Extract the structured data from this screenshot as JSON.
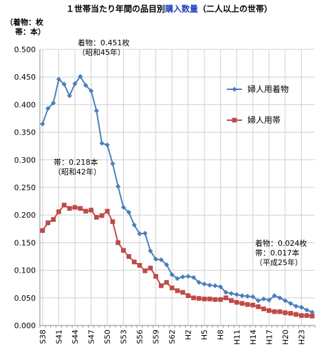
{
  "chart_data": {
    "type": "line",
    "title": {
      "part1": "１世帯当たり年間の品目別",
      "part2": "購入数量",
      "part3": "（二人以上の世帯）"
    },
    "unit_label": [
      "（着物：枚",
      "帯：本）"
    ],
    "ylim": [
      0,
      0.5
    ],
    "yticks": [
      "0.000",
      "0.050",
      "0.100",
      "0.150",
      "0.200",
      "0.250",
      "0.300",
      "0.350",
      "0.400",
      "0.450",
      "0.500"
    ],
    "xtick_labels": [
      "S38",
      "S41",
      "S44",
      "S47",
      "S50",
      "S53",
      "S56",
      "S59",
      "S62",
      "H2",
      "H5",
      "H8",
      "H11",
      "H14",
      "H17",
      "H20",
      "H23"
    ],
    "x": [
      "S38",
      "S39",
      "S40",
      "S41",
      "S42",
      "S43",
      "S44",
      "S45",
      "S46",
      "S47",
      "S48",
      "S49",
      "S50",
      "S51",
      "S52",
      "S53",
      "S54",
      "S55",
      "S56",
      "S57",
      "S58",
      "S59",
      "S60",
      "S61",
      "S62",
      "S63",
      "H1",
      "H2",
      "H3",
      "H4",
      "H5",
      "H6",
      "H7",
      "H8",
      "H9",
      "H10",
      "H11",
      "H12",
      "H13",
      "H14",
      "H15",
      "H16",
      "H17",
      "H18",
      "H19",
      "H20",
      "H21",
      "H22",
      "H23",
      "H24",
      "H25"
    ],
    "grid": true,
    "legend_position": "right",
    "series": [
      {
        "name": "婦人用着物",
        "color": "#4a7ebb",
        "marker": "diamond",
        "values": [
          0.365,
          0.393,
          0.403,
          0.446,
          0.437,
          0.416,
          0.438,
          0.451,
          0.435,
          0.425,
          0.389,
          0.33,
          0.327,
          0.293,
          0.252,
          0.214,
          0.205,
          0.182,
          0.166,
          0.167,
          0.135,
          0.12,
          0.119,
          0.11,
          0.092,
          0.085,
          0.088,
          0.089,
          0.087,
          0.078,
          0.075,
          0.073,
          0.072,
          0.07,
          0.06,
          0.058,
          0.056,
          0.054,
          0.053,
          0.052,
          0.045,
          0.048,
          0.046,
          0.054,
          0.05,
          0.045,
          0.04,
          0.035,
          0.033,
          0.028,
          0.024
        ]
      },
      {
        "name": "婦人用帯",
        "color": "#be4b48",
        "marker": "square",
        "values": [
          0.172,
          0.186,
          0.192,
          0.206,
          0.218,
          0.212,
          0.214,
          0.212,
          0.207,
          0.209,
          0.196,
          0.199,
          0.207,
          0.188,
          0.15,
          0.136,
          0.125,
          0.115,
          0.109,
          0.099,
          0.104,
          0.089,
          0.072,
          0.078,
          0.068,
          0.063,
          0.06,
          0.054,
          0.05,
          0.049,
          0.048,
          0.048,
          0.047,
          0.047,
          0.05,
          0.045,
          0.042,
          0.04,
          0.038,
          0.037,
          0.034,
          0.03,
          0.027,
          0.025,
          0.025,
          0.023,
          0.022,
          0.02,
          0.018,
          0.018,
          0.017
        ]
      }
    ],
    "annotations": [
      {
        "lines": [
          "着物：0.451枚",
          "（昭和45年）"
        ]
      },
      {
        "lines": [
          "帯：0.218本",
          "（昭和42年）"
        ]
      },
      {
        "lines": [
          "着物：0.024枚",
          "帯：0.017本",
          "（平成25年）"
        ]
      }
    ]
  }
}
